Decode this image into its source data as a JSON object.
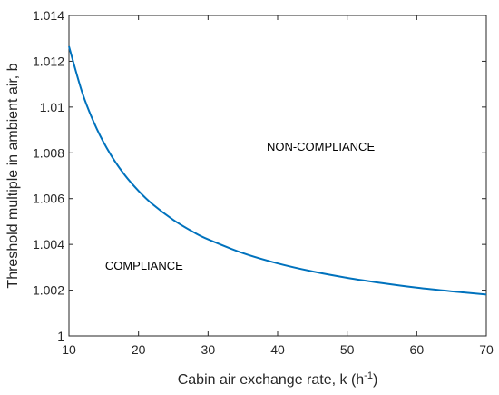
{
  "chart_data": {
    "type": "line",
    "title": "",
    "xlabel": "Cabin air exchange rate, k (h",
    "xlabel_sup": "-1",
    "xlabel_end": ")",
    "ylabel": "Threshold multiple in ambient air, b",
    "xlim": [
      10,
      70
    ],
    "ylim": [
      1,
      1.014
    ],
    "xticks": [
      "10",
      "20",
      "30",
      "40",
      "50",
      "60",
      "70"
    ],
    "yticks": [
      "1",
      "1.002",
      "1.004",
      "1.006",
      "1.008",
      "1.01",
      "1.012",
      "1.014"
    ],
    "grid": false,
    "series": [
      {
        "color": "#0072BD",
        "x": [
          10,
          12,
          14,
          16,
          18,
          20,
          22,
          25,
          28,
          30,
          35,
          40,
          45,
          50,
          55,
          60,
          65,
          70
        ],
        "y": [
          1.01265,
          1.01055,
          1.00905,
          1.00792,
          1.00704,
          1.00634,
          1.00576,
          1.00507,
          1.00452,
          1.00422,
          1.00362,
          1.00317,
          1.00282,
          1.00254,
          1.00231,
          1.00211,
          1.00195,
          1.00181
        ]
      }
    ],
    "annotations": [
      {
        "text": "NON-COMPLIANCE",
        "x": 46.2,
        "y": 1.0081
      },
      {
        "text": "COMPLIANCE",
        "x": 20.8,
        "y": 1.0029
      }
    ]
  }
}
